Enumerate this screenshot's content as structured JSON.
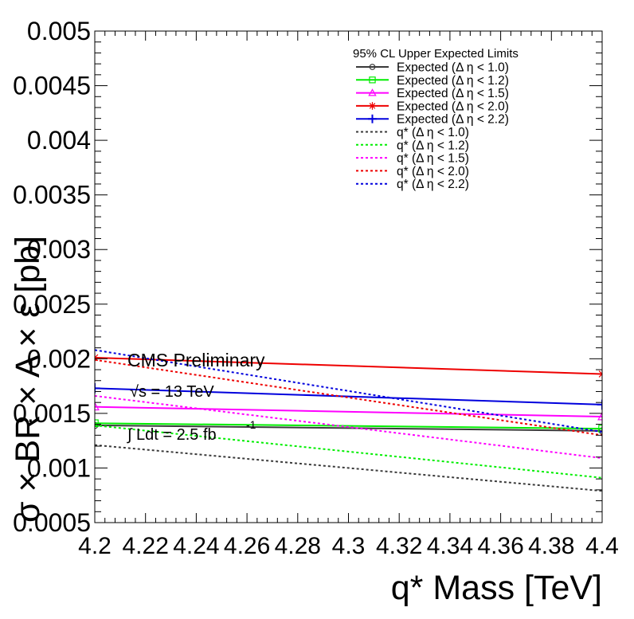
{
  "chart_data": {
    "type": "line",
    "title": "",
    "xlabel": "q* Mass [TeV]",
    "ylabel": "σ × BR × A × ε [pb]",
    "xlim": [
      4.2,
      4.4
    ],
    "ylim": [
      0.0005,
      0.005
    ],
    "x_tick_labels": [
      "4.2",
      "4.22",
      "4.24",
      "4.26",
      "4.28",
      "4.3",
      "4.32",
      "4.34",
      "4.36",
      "4.38",
      "4.4"
    ],
    "y_tick_labels": [
      "0.0005",
      "0.001",
      "0.0015",
      "0.002",
      "0.0025",
      "0.003",
      "0.0035",
      "0.004",
      "0.0045",
      "0.005"
    ],
    "grid": false,
    "legend_position": "top-right",
    "legend_title": "95% CL Upper Expected Limits",
    "annotations": {
      "experiment": "CMS Preliminary",
      "energy": "√s = 13 TeV",
      "lumi": "∫ Ldt = 2.5 fb",
      "lumi_exponent": "-1"
    },
    "series": [
      {
        "name": "Expected (Δ η < 1.0)",
        "color": "#3a3a3a",
        "style": "solid",
        "marker": "circle",
        "x": [
          4.2,
          4.4
        ],
        "y": [
          0.00139,
          0.00134
        ]
      },
      {
        "name": "Expected (Δ η < 1.2)",
        "color": "#00ee00",
        "style": "solid",
        "marker": "square",
        "x": [
          4.2,
          4.4
        ],
        "y": [
          0.00141,
          0.00136
        ]
      },
      {
        "name": "Expected (Δ η < 1.5)",
        "color": "#ff00ff",
        "style": "solid",
        "marker": "triangle",
        "x": [
          4.2,
          4.4
        ],
        "y": [
          0.00156,
          0.00147
        ]
      },
      {
        "name": "Expected (Δ η < 2.0)",
        "color": "#ee0000",
        "style": "solid",
        "marker": "star",
        "x": [
          4.2,
          4.4
        ],
        "y": [
          0.00201,
          0.00186
        ]
      },
      {
        "name": "Expected (Δ η < 2.2)",
        "color": "#0000dd",
        "style": "solid",
        "marker": "cross",
        "x": [
          4.2,
          4.4
        ],
        "y": [
          0.00173,
          0.00158
        ]
      },
      {
        "name": "q* (Δ η < 1.0)",
        "color": "#3a3a3a",
        "style": "dotted",
        "marker": "none",
        "x": [
          4.2,
          4.4
        ],
        "y": [
          0.00121,
          0.00079
        ]
      },
      {
        "name": "q* (Δ η < 1.2)",
        "color": "#00ee00",
        "style": "dotted",
        "marker": "none",
        "x": [
          4.2,
          4.4
        ],
        "y": [
          0.00139,
          0.00091
        ]
      },
      {
        "name": "q* (Δ η < 1.5)",
        "color": "#ff00ff",
        "style": "dotted",
        "marker": "none",
        "x": [
          4.2,
          4.4
        ],
        "y": [
          0.00166,
          0.00109
        ]
      },
      {
        "name": "q* (Δ η < 2.0)",
        "color": "#ee0000",
        "style": "dotted",
        "marker": "none",
        "x": [
          4.2,
          4.4
        ],
        "y": [
          0.00199,
          0.0013
        ]
      },
      {
        "name": "q* (Δ η < 2.2)",
        "color": "#0000dd",
        "style": "dotted",
        "marker": "none",
        "x": [
          4.2,
          4.4
        ],
        "y": [
          0.00208,
          0.00133
        ]
      }
    ]
  }
}
